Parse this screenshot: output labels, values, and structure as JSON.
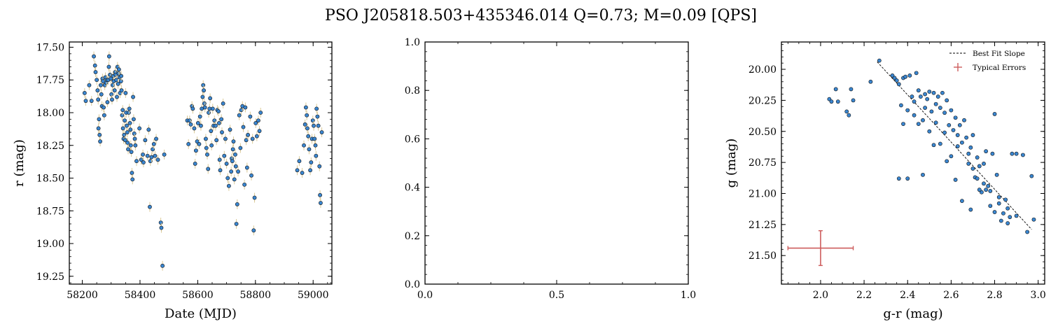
{
  "figure": {
    "title": "PSO J205818.503+435346.014  Q=0.73; M=0.09 [QPS]"
  },
  "colors": {
    "point_fill": "#3a86d0",
    "point_edge": "#101010",
    "errbar": "#d9c896",
    "typical_error": "#cd5c5c",
    "fit_line": "#000000"
  },
  "chart_data": [
    {
      "type": "scatter",
      "xlabel": "Date (MJD)",
      "ylabel": "r (mag)",
      "xlim": [
        58155,
        59065
      ],
      "ylim": [
        19.31,
        17.46
      ],
      "y_inverted": true,
      "xticks": [
        58200,
        58400,
        58600,
        58800,
        59000
      ],
      "yticks": [
        17.5,
        17.75,
        18.0,
        18.25,
        18.5,
        18.75,
        19.0,
        19.25
      ],
      "ytick_labels": [
        "17.50",
        "17.75",
        "18.00",
        "18.25",
        "18.50",
        "18.75",
        "19.00",
        "19.25"
      ],
      "error_bars": true,
      "points": [
        [
          58208,
          17.85
        ],
        [
          58212,
          17.91
        ],
        [
          58224,
          17.79
        ],
        [
          58232,
          17.91
        ],
        [
          58240,
          17.57
        ],
        [
          58244,
          17.64
        ],
        [
          58246,
          17.69
        ],
        [
          58250,
          17.75
        ],
        [
          58253,
          17.83
        ],
        [
          58255,
          17.9
        ],
        [
          58256,
          18.12
        ],
        [
          58258,
          18.05
        ],
        [
          58260,
          18.17
        ],
        [
          58262,
          18.22
        ],
        [
          58264,
          17.79
        ],
        [
          58266,
          17.86
        ],
        [
          58268,
          17.95
        ],
        [
          58270,
          17.74
        ],
        [
          58272,
          17.76
        ],
        [
          58274,
          17.96
        ],
        [
          58276,
          18.02
        ],
        [
          58278,
          17.79
        ],
        [
          58280,
          17.73
        ],
        [
          58283,
          17.77
        ],
        [
          58285,
          17.75
        ],
        [
          58287,
          17.92
        ],
        [
          58290,
          17.75
        ],
        [
          58292,
          17.65
        ],
        [
          58293,
          17.57
        ],
        [
          58296,
          17.71
        ],
        [
          58299,
          17.74
        ],
        [
          58301,
          17.86
        ],
        [
          58303,
          17.9
        ],
        [
          58305,
          17.79
        ],
        [
          58307,
          17.72
        ],
        [
          58309,
          17.76
        ],
        [
          58312,
          17.83
        ],
        [
          58314,
          17.69
        ],
        [
          58316,
          17.71
        ],
        [
          58318,
          17.75
        ],
        [
          58320,
          17.88
        ],
        [
          58322,
          17.65
        ],
        [
          58324,
          17.78
        ],
        [
          58326,
          17.7
        ],
        [
          58327,
          17.67
        ],
        [
          58329,
          17.73
        ],
        [
          58331,
          17.85
        ],
        [
          58334,
          17.76
        ],
        [
          58335,
          17.72
        ],
        [
          58336,
          17.83
        ],
        [
          58338,
          18.02
        ],
        [
          58340,
          17.98
        ],
        [
          58341,
          18.12
        ],
        [
          58343,
          18.2
        ],
        [
          58345,
          18.17
        ],
        [
          58347,
          18.06
        ],
        [
          58349,
          18.21
        ],
        [
          58350,
          17.85
        ],
        [
          58352,
          18.0
        ],
        [
          58354,
          18.1
        ],
        [
          58356,
          18.15
        ],
        [
          58357,
          18.23
        ],
        [
          58359,
          18.28
        ],
        [
          58361,
          18.0
        ],
        [
          58363,
          17.97
        ],
        [
          58365,
          18.08
        ],
        [
          58367,
          18.13
        ],
        [
          58368,
          18.25
        ],
        [
          58370,
          18.3
        ],
        [
          58372,
          18.46
        ],
        [
          58374,
          18.51
        ],
        [
          58376,
          17.88
        ],
        [
          58378,
          18.05
        ],
        [
          58380,
          18.16
        ],
        [
          58382,
          18.2
        ],
        [
          58384,
          18.25
        ],
        [
          58388,
          18.37
        ],
        [
          58398,
          18.12
        ],
        [
          58404,
          18.36
        ],
        [
          58410,
          18.32
        ],
        [
          58412,
          18.38
        ],
        [
          58418,
          18.21
        ],
        [
          58426,
          18.33
        ],
        [
          58430,
          18.13
        ],
        [
          58434,
          18.72
        ],
        [
          58436,
          18.37
        ],
        [
          58440,
          18.34
        ],
        [
          58444,
          18.28
        ],
        [
          58448,
          18.24
        ],
        [
          58452,
          18.33
        ],
        [
          58456,
          18.2
        ],
        [
          58462,
          18.36
        ],
        [
          58472,
          18.84
        ],
        [
          58474,
          18.88
        ],
        [
          58478,
          19.17
        ],
        [
          58484,
          18.32
        ],
        [
          58564,
          18.06
        ],
        [
          58568,
          18.24
        ],
        [
          58572,
          18.06
        ],
        [
          58576,
          18.09
        ],
        [
          58580,
          17.95
        ],
        [
          58583,
          17.97
        ],
        [
          58588,
          18.12
        ],
        [
          58591,
          18.39
        ],
        [
          58594,
          18.29
        ],
        [
          58598,
          18.22
        ],
        [
          58601,
          18.08
        ],
        [
          58605,
          18.24
        ],
        [
          58608,
          18.03
        ],
        [
          58611,
          18.1
        ],
        [
          58614,
          17.97
        ],
        [
          58617,
          17.88
        ],
        [
          58619,
          17.79
        ],
        [
          58621,
          17.83
        ],
        [
          58623,
          17.93
        ],
        [
          58625,
          17.96
        ],
        [
          58628,
          18.2
        ],
        [
          58630,
          18.27
        ],
        [
          58633,
          18.32
        ],
        [
          58636,
          18.43
        ],
        [
          58638,
          18.0
        ],
        [
          58641,
          17.97
        ],
        [
          58643,
          17.89
        ],
        [
          58646,
          18.14
        ],
        [
          58648,
          18.25
        ],
        [
          58652,
          17.97
        ],
        [
          58655,
          18.1
        ],
        [
          58658,
          18.06
        ],
        [
          58662,
          18.1
        ],
        [
          58665,
          18.21
        ],
        [
          58668,
          17.98
        ],
        [
          58672,
          17.99
        ],
        [
          58674,
          18.08
        ],
        [
          58676,
          18.36
        ],
        [
          58678,
          18.44
        ],
        [
          58682,
          18.05
        ],
        [
          58684,
          18.15
        ],
        [
          58688,
          17.93
        ],
        [
          58692,
          18.33
        ],
        [
          58696,
          18.2
        ],
        [
          58700,
          18.39
        ],
        [
          58704,
          18.5
        ],
        [
          58708,
          18.56
        ],
        [
          58712,
          18.13
        ],
        [
          58716,
          18.45
        ],
        [
          58718,
          18.35
        ],
        [
          58720,
          18.37
        ],
        [
          58722,
          18.28
        ],
        [
          58724,
          18.22
        ],
        [
          58727,
          18.51
        ],
        [
          58730,
          18.32
        ],
        [
          58732,
          18.41
        ],
        [
          58734,
          18.85
        ],
        [
          58737,
          18.7
        ],
        [
          58740,
          18.45
        ],
        [
          58744,
          18.02
        ],
        [
          58748,
          18.27
        ],
        [
          58751,
          17.98
        ],
        [
          58755,
          17.95
        ],
        [
          58758,
          18.11
        ],
        [
          58762,
          18.55
        ],
        [
          58765,
          17.96
        ],
        [
          58768,
          18.21
        ],
        [
          58771,
          18.42
        ],
        [
          58774,
          18.17
        ],
        [
          58782,
          18.03
        ],
        [
          58786,
          18.48
        ],
        [
          58790,
          18.2
        ],
        [
          58794,
          18.9
        ],
        [
          58797,
          18.65
        ],
        [
          58801,
          18.08
        ],
        [
          58805,
          18.18
        ],
        [
          58810,
          18.06
        ],
        [
          58814,
          18.14
        ],
        [
          58818,
          18.0
        ],
        [
          58945,
          18.44
        ],
        [
          58952,
          18.37
        ],
        [
          58962,
          18.46
        ],
        [
          58968,
          18.25
        ],
        [
          58972,
          18.09
        ],
        [
          58975,
          17.96
        ],
        [
          58978,
          18.02
        ],
        [
          58980,
          18.12
        ],
        [
          58983,
          18.18
        ],
        [
          58986,
          18.28
        ],
        [
          58990,
          18.44
        ],
        [
          58993,
          18.38
        ],
        [
          58996,
          18.2
        ],
        [
          58999,
          18.06
        ],
        [
          59002,
          18.1
        ],
        [
          59005,
          18.2
        ],
        [
          59008,
          18.25
        ],
        [
          59010,
          18.33
        ],
        [
          59012,
          17.97
        ],
        [
          59015,
          18.03
        ],
        [
          59018,
          18.1
        ],
        [
          59022,
          18.41
        ],
        [
          59024,
          18.63
        ],
        [
          59026,
          18.69
        ],
        [
          59030,
          18.15
        ]
      ]
    },
    {
      "type": "scatter",
      "xlim": [
        0.0,
        1.0
      ],
      "ylim": [
        0.0,
        1.0
      ],
      "xticks": [
        0.0,
        0.5,
        1.0
      ],
      "xtick_labels": [
        "0.0",
        "0.5",
        "1.0"
      ],
      "yticks": [
        0.0,
        0.2,
        0.4,
        0.6,
        0.8,
        1.0
      ],
      "ytick_labels": [
        "0.0",
        "0.2",
        "0.4",
        "0.6",
        "0.8",
        "1.0"
      ],
      "points": []
    },
    {
      "type": "scatter",
      "xlabel": "g-r (mag)",
      "ylabel": "g (mag)",
      "xlim": [
        1.82,
        3.03
      ],
      "ylim": [
        21.73,
        19.78
      ],
      "y_inverted": true,
      "xticks": [
        2.0,
        2.2,
        2.4,
        2.6,
        2.8,
        3.0
      ],
      "xtick_labels": [
        "2.0",
        "2.2",
        "2.4",
        "2.6",
        "2.8",
        "3.0"
      ],
      "yticks": [
        20.0,
        20.25,
        20.5,
        20.75,
        21.0,
        21.25,
        21.5
      ],
      "ytick_labels": [
        "20.00",
        "20.25",
        "20.50",
        "20.75",
        "21.00",
        "21.25",
        "21.50"
      ],
      "legend": {
        "placement": "top-right",
        "entries": [
          "Best Fit Slope",
          "Typical Errors"
        ]
      },
      "fit_line": {
        "x": [
          2.26,
          2.97
        ],
        "y": [
          19.94,
          21.29
        ]
      },
      "typical_error": {
        "x": 2.0,
        "y": 21.44,
        "xerr": 0.15,
        "yerr": 0.14
      },
      "points": [
        [
          2.27,
          19.93
        ],
        [
          2.23,
          20.1
        ],
        [
          2.04,
          20.24
        ],
        [
          2.05,
          20.26
        ],
        [
          2.07,
          20.16
        ],
        [
          2.08,
          20.26
        ],
        [
          2.12,
          20.34
        ],
        [
          2.13,
          20.37
        ],
        [
          2.14,
          20.16
        ],
        [
          2.15,
          20.25
        ],
        [
          2.33,
          20.05
        ],
        [
          2.34,
          20.07
        ],
        [
          2.35,
          20.09
        ],
        [
          2.36,
          20.12
        ],
        [
          2.37,
          20.29
        ],
        [
          2.38,
          20.07
        ],
        [
          2.39,
          20.06
        ],
        [
          2.4,
          20.33
        ],
        [
          2.41,
          20.05
        ],
        [
          2.42,
          20.22
        ],
        [
          2.43,
          20.26
        ],
        [
          2.44,
          20.03
        ],
        [
          2.45,
          20.17
        ],
        [
          2.46,
          20.22
        ],
        [
          2.47,
          20.41
        ],
        [
          2.48,
          20.2
        ],
        [
          2.49,
          20.24
        ],
        [
          2.5,
          20.18
        ],
        [
          2.51,
          20.34
        ],
        [
          2.52,
          20.19
        ],
        [
          2.53,
          20.28
        ],
        [
          2.54,
          20.22
        ],
        [
          2.55,
          20.31
        ],
        [
          2.56,
          20.19
        ],
        [
          2.57,
          20.35
        ],
        [
          2.58,
          20.25
        ],
        [
          2.59,
          20.45
        ],
        [
          2.6,
          20.33
        ],
        [
          2.61,
          20.49
        ],
        [
          2.62,
          20.39
        ],
        [
          2.63,
          20.53
        ],
        [
          2.64,
          20.45
        ],
        [
          2.65,
          20.59
        ],
        [
          2.66,
          20.41
        ],
        [
          2.67,
          20.55
        ],
        [
          2.68,
          20.68
        ],
        [
          2.69,
          20.63
        ],
        [
          2.7,
          20.53
        ],
        [
          2.71,
          20.87
        ],
        [
          2.72,
          20.71
        ],
        [
          2.73,
          20.78
        ],
        [
          2.74,
          20.99
        ],
        [
          2.75,
          20.92
        ],
        [
          2.76,
          20.66
        ],
        [
          2.77,
          20.94
        ],
        [
          2.78,
          21.1
        ],
        [
          2.79,
          20.68
        ],
        [
          2.8,
          21.15
        ],
        [
          2.81,
          20.85
        ],
        [
          2.82,
          21.08
        ],
        [
          2.83,
          21.22
        ],
        [
          2.84,
          21.16
        ],
        [
          2.85,
          21.05
        ],
        [
          2.86,
          21.24
        ],
        [
          2.87,
          21.19
        ],
        [
          2.88,
          20.68
        ],
        [
          2.9,
          20.68
        ],
        [
          2.93,
          20.69
        ],
        [
          2.95,
          21.31
        ],
        [
          2.97,
          20.86
        ],
        [
          2.98,
          21.21
        ],
        [
          2.36,
          20.88
        ],
        [
          2.4,
          20.88
        ],
        [
          2.47,
          20.85
        ],
        [
          2.52,
          20.61
        ],
        [
          2.58,
          20.74
        ],
        [
          2.62,
          20.89
        ],
        [
          2.65,
          21.06
        ],
        [
          2.69,
          21.13
        ],
        [
          2.73,
          20.97
        ],
        [
          2.76,
          20.97
        ],
        [
          2.8,
          20.36
        ],
        [
          2.75,
          20.76
        ],
        [
          2.55,
          20.6
        ],
        [
          2.45,
          20.44
        ],
        [
          2.5,
          20.5
        ],
        [
          2.6,
          20.7
        ],
        [
          2.7,
          20.8
        ],
        [
          2.38,
          20.44
        ],
        [
          2.43,
          20.37
        ],
        [
          2.48,
          20.31
        ],
        [
          2.53,
          20.43
        ],
        [
          2.57,
          20.51
        ],
        [
          2.63,
          20.62
        ],
        [
          2.68,
          20.76
        ],
        [
          2.72,
          20.88
        ],
        [
          2.78,
          20.98
        ],
        [
          2.82,
          21.03
        ],
        [
          2.86,
          21.12
        ],
        [
          2.9,
          21.18
        ]
      ]
    }
  ]
}
